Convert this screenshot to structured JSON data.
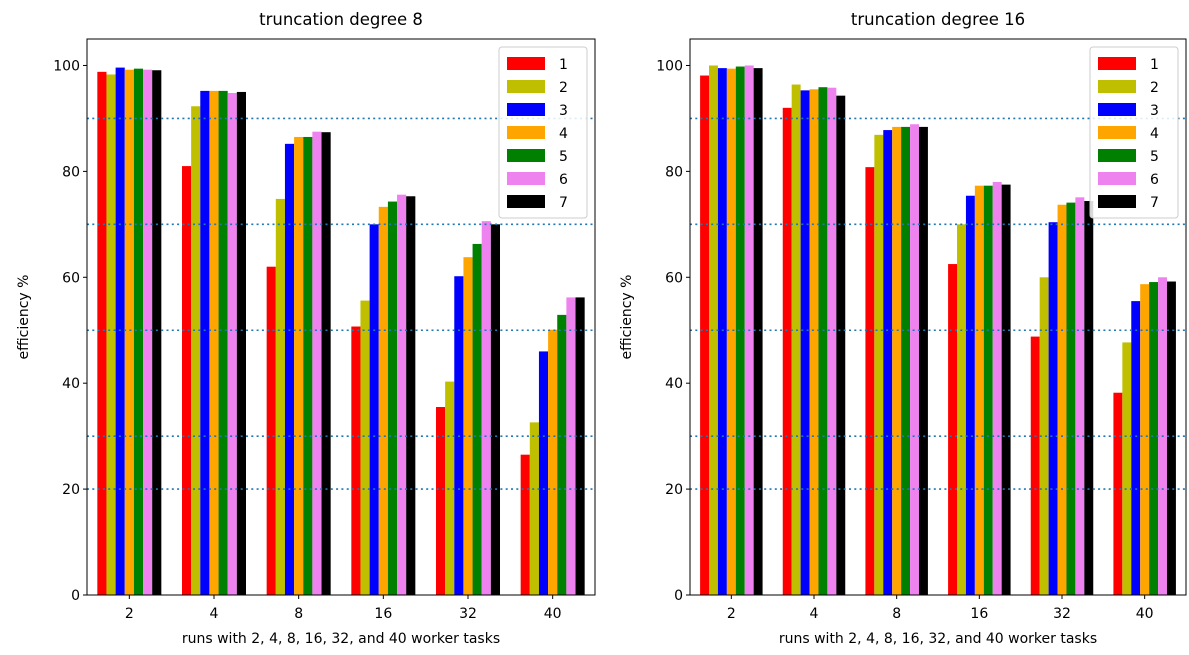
{
  "chart_data": [
    {
      "type": "bar",
      "title": "truncation degree 8",
      "xlabel": "runs with 2, 4, 8, 16, 32, and 40 worker tasks",
      "ylabel": "efficiency %",
      "ylim": [
        0,
        105
      ],
      "yticks": [
        0,
        20,
        40,
        60,
        80,
        100
      ],
      "categories": [
        "2",
        "4",
        "8",
        "16",
        "32",
        "40"
      ],
      "reference_lines": [
        20,
        30,
        50,
        70,
        90
      ],
      "legend_position": "upper-right",
      "series": [
        {
          "name": "1",
          "color": "#ff0000",
          "values": [
            98.8,
            81.0,
            62.0,
            50.7,
            35.5,
            26.5
          ]
        },
        {
          "name": "2",
          "color": "#bfbf00",
          "values": [
            98.3,
            92.3,
            74.8,
            55.6,
            40.3,
            32.6
          ]
        },
        {
          "name": "3",
          "color": "#0000ff",
          "values": [
            99.6,
            95.2,
            85.2,
            70.0,
            60.2,
            46.0
          ]
        },
        {
          "name": "4",
          "color": "#ffa500",
          "values": [
            99.2,
            95.2,
            86.5,
            73.3,
            63.8,
            50.1
          ]
        },
        {
          "name": "5",
          "color": "#008000",
          "values": [
            99.4,
            95.2,
            86.5,
            74.3,
            66.3,
            52.9
          ]
        },
        {
          "name": "6",
          "color": "#ee82ee",
          "values": [
            99.2,
            94.8,
            87.5,
            75.6,
            70.6,
            56.2
          ]
        },
        {
          "name": "7",
          "color": "#000000",
          "values": [
            99.1,
            95.0,
            87.4,
            75.3,
            70.0,
            56.2
          ]
        }
      ]
    },
    {
      "type": "bar",
      "title": "truncation degree 16",
      "xlabel": "runs with 2, 4, 8, 16, 32, and 40 worker tasks",
      "ylabel": "efficiency %",
      "ylim": [
        0,
        105
      ],
      "yticks": [
        0,
        20,
        40,
        60,
        80,
        100
      ],
      "categories": [
        "2",
        "4",
        "8",
        "16",
        "32",
        "40"
      ],
      "reference_lines": [
        20,
        30,
        50,
        70,
        90
      ],
      "legend_position": "upper-right",
      "series": [
        {
          "name": "1",
          "color": "#ff0000",
          "values": [
            98.1,
            92.0,
            80.8,
            62.5,
            48.8,
            38.2
          ]
        },
        {
          "name": "2",
          "color": "#bfbf00",
          "values": [
            100.0,
            96.4,
            86.9,
            70.0,
            60.0,
            47.7
          ]
        },
        {
          "name": "3",
          "color": "#0000ff",
          "values": [
            99.5,
            95.3,
            87.8,
            75.4,
            70.4,
            55.5
          ]
        },
        {
          "name": "4",
          "color": "#ffa500",
          "values": [
            99.4,
            95.5,
            88.4,
            77.3,
            73.7,
            58.7
          ]
        },
        {
          "name": "5",
          "color": "#008000",
          "values": [
            99.8,
            95.9,
            88.4,
            77.3,
            74.1,
            59.1
          ]
        },
        {
          "name": "6",
          "color": "#ee82ee",
          "values": [
            100.0,
            95.8,
            88.9,
            78.0,
            75.1,
            60.0
          ]
        },
        {
          "name": "7",
          "color": "#000000",
          "values": [
            99.5,
            94.3,
            88.4,
            77.5,
            74.4,
            59.2
          ]
        }
      ]
    }
  ]
}
